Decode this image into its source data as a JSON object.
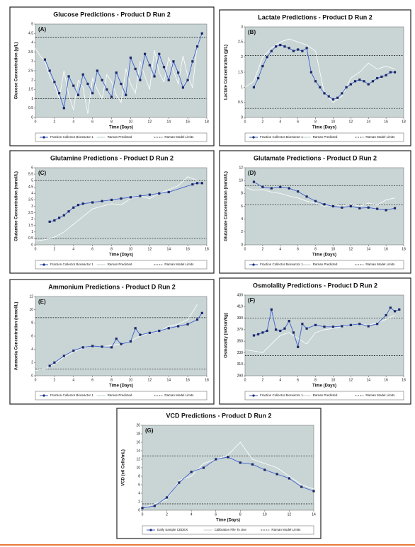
{
  "chart_data": [
    {
      "type": "line",
      "title": "Glucose Predictions - Product D Run 2",
      "panel_label": "(A)",
      "xlabel": "Time (Days)",
      "ylabel": "Glucose Concentration (g/L)",
      "xlim": [
        0,
        18
      ],
      "xticks": [
        0,
        2,
        4,
        6,
        8,
        10,
        12,
        14,
        16,
        18
      ],
      "ylim": [
        0,
        5
      ],
      "yticks": [
        0,
        0.5,
        1,
        1.5,
        2,
        2.5,
        3,
        3.5,
        4,
        4.5,
        5
      ],
      "series": [
        {
          "name": "Fraction Collector Bioreactor 1",
          "color": "#3a5fcd",
          "x": [
            1,
            1.5,
            2,
            2.5,
            3,
            3.5,
            4,
            4.5,
            5,
            5.5,
            6,
            6.5,
            7,
            7.5,
            8,
            8.5,
            9,
            9.5,
            10,
            10.5,
            11,
            11.5,
            12,
            12.5,
            13,
            13.5,
            14,
            14.5,
            15,
            15.5,
            16,
            16.5,
            17,
            17.5
          ],
          "values": [
            3.1,
            2.5,
            1.9,
            1.3,
            0.5,
            2.2,
            1.7,
            1.2,
            2.3,
            1.8,
            1.3,
            2.5,
            2.0,
            1.5,
            1.1,
            2.4,
            1.8,
            1.2,
            3.2,
            2.6,
            2.0,
            3.4,
            2.8,
            2.2,
            3.4,
            2.7,
            2.0,
            3.0,
            2.4,
            1.6,
            2.0,
            3.0,
            3.8,
            4.5
          ]
        },
        {
          "name": "Raman Predicted",
          "color": "#ffffff",
          "x": [
            0,
            0.5,
            1,
            1.5,
            2,
            2.5,
            3,
            3.5,
            4,
            4.5,
            5,
            5.5,
            6,
            6.5,
            7,
            7.5,
            8,
            8.5,
            9,
            9.5,
            10,
            10.5,
            11,
            11.5,
            12,
            12.5,
            13,
            13.5,
            14,
            14.5,
            15,
            15.5,
            16,
            16.5,
            17,
            17.5
          ],
          "values": [
            3.7,
            3.3,
            3.0,
            2.2,
            1.8,
            1.0,
            2.5,
            1.2,
            0.4,
            2.0,
            1.6,
            0.2,
            2.1,
            1.5,
            1.0,
            2.3,
            1.9,
            1.2,
            0.8,
            2.6,
            1.8,
            1.3,
            3.0,
            2.2,
            1.5,
            3.6,
            2.4,
            1.9,
            3.2,
            2.5,
            1.8,
            3.3,
            2.2,
            1.6,
            3.9,
            4.4
          ]
        }
      ],
      "limits": {
        "name": "Raman Model Limits",
        "values": [
          1.0,
          4.3
        ]
      }
    },
    {
      "type": "line",
      "title": "Lactate Predictions - Product D Run 2",
      "panel_label": "(B)",
      "xlabel": "Time (Days)",
      "ylabel": "Lactate Concentration (g/L)",
      "xlim": [
        0,
        18
      ],
      "xticks": [
        0,
        2,
        4,
        6,
        8,
        10,
        12,
        14,
        16,
        18
      ],
      "ylim": [
        0,
        3
      ],
      "yticks": [
        0,
        0.5,
        1,
        1.5,
        2,
        2.5,
        3
      ],
      "series": [
        {
          "name": "Fraction Collector Bioreactor 1",
          "color": "#3a5fcd",
          "x": [
            1,
            1.5,
            2,
            2.5,
            3,
            3.5,
            4,
            4.5,
            5,
            5.5,
            6,
            6.5,
            7,
            7.5,
            8,
            8.5,
            9,
            9.5,
            10,
            10.5,
            11,
            11.5,
            12,
            12.5,
            13,
            13.5,
            14,
            14.5,
            15,
            15.5,
            16,
            16.5,
            17
          ],
          "values": [
            1.0,
            1.3,
            1.7,
            2.0,
            2.2,
            2.35,
            2.4,
            2.35,
            2.3,
            2.2,
            2.25,
            2.2,
            2.3,
            1.5,
            1.2,
            1.0,
            0.8,
            0.7,
            0.6,
            0.65,
            0.8,
            1.0,
            1.1,
            1.2,
            1.25,
            1.2,
            1.1,
            1.2,
            1.3,
            1.35,
            1.4,
            1.5,
            1.5
          ]
        },
        {
          "name": "Raman Predicted",
          "color": "#ffffff",
          "x": [
            0,
            1,
            2,
            3,
            4,
            5,
            6,
            7,
            8,
            9,
            10,
            11,
            12,
            13,
            14,
            15,
            16,
            17
          ],
          "values": [
            1.0,
            1.2,
            2.0,
            2.3,
            2.5,
            2.6,
            2.5,
            2.4,
            2.2,
            0.8,
            0.5,
            0.7,
            1.3,
            1.5,
            1.8,
            1.6,
            1.7,
            1.6
          ]
        }
      ],
      "limits": {
        "name": "Raman Model Limits",
        "values": [
          0.3,
          2.05
        ]
      }
    },
    {
      "type": "line",
      "title": "Glutamine Predictions - Product D Run 2",
      "panel_label": "(C)",
      "xlabel": "Time (Days)",
      "ylabel": "Glutamine Concentration (mmol/L)",
      "xlim": [
        0,
        18
      ],
      "xticks": [
        0,
        2,
        4,
        6,
        8,
        10,
        12,
        14,
        16,
        18
      ],
      "ylim": [
        0,
        6
      ],
      "yticks": [
        0,
        0.5,
        1,
        1.5,
        2,
        2.5,
        3,
        3.5,
        4,
        4.5,
        5,
        5.5,
        6
      ],
      "series": [
        {
          "name": "Fraction Collector Bioreactor 1",
          "color": "#3a5fcd",
          "x": [
            1.5,
            2,
            2.5,
            3,
            3.5,
            4,
            4.5,
            5,
            6,
            7,
            8,
            9,
            10,
            11,
            12,
            13,
            14,
            16.5,
            17,
            17.5
          ],
          "values": [
            1.8,
            1.9,
            2.1,
            2.3,
            2.6,
            2.9,
            3.1,
            3.2,
            3.3,
            3.4,
            3.5,
            3.6,
            3.7,
            3.8,
            3.9,
            4.0,
            4.1,
            4.7,
            4.8,
            4.8
          ]
        },
        {
          "name": "Raman Predicted",
          "color": "#ffffff",
          "x": [
            0,
            1,
            2,
            3,
            4,
            5,
            6,
            7,
            8,
            9,
            10,
            11,
            12,
            13,
            14,
            15,
            16,
            17
          ],
          "values": [
            0.3,
            0.4,
            0.6,
            1.0,
            1.6,
            2.2,
            2.8,
            3.0,
            3.2,
            3.1,
            3.6,
            3.8,
            3.6,
            4.0,
            4.3,
            4.6,
            5.3,
            5.0
          ]
        }
      ],
      "limits": {
        "name": "Raman Model Limits",
        "values": [
          0.5,
          5.0
        ]
      }
    },
    {
      "type": "line",
      "title": "Glutamate Predictions - Product D Run 2",
      "panel_label": "(D)",
      "xlabel": "Time (Days)",
      "ylabel": "Glutamate Concentration (mmol/L)",
      "xlim": [
        0,
        18
      ],
      "xticks": [
        0,
        2,
        4,
        6,
        8,
        10,
        12,
        14,
        16,
        18
      ],
      "ylim": [
        0,
        12
      ],
      "yticks": [
        0,
        2,
        4,
        6,
        8,
        10,
        12
      ],
      "series": [
        {
          "name": "Fraction Collector Bioreactor 1",
          "color": "#3a5fcd",
          "x": [
            1,
            2,
            3,
            4,
            5,
            6,
            7,
            8,
            9,
            10,
            11,
            12,
            13,
            14,
            15,
            16,
            17
          ],
          "values": [
            9.8,
            9.0,
            8.8,
            9.0,
            8.8,
            8.3,
            7.5,
            6.8,
            6.3,
            6.0,
            5.8,
            6.0,
            5.7,
            5.8,
            5.6,
            5.4,
            5.7
          ]
        },
        {
          "name": "Raman Predicted",
          "color": "#ffffff",
          "x": [
            0,
            1,
            2,
            3,
            4,
            5,
            6,
            7,
            8,
            9,
            10,
            11,
            12,
            13,
            14,
            15,
            16,
            17
          ],
          "values": [
            8.9,
            8.5,
            8.6,
            8.2,
            8.0,
            7.6,
            7.3,
            6.8,
            6.5,
            6.0,
            6.3,
            6.0,
            6.4,
            6.0,
            6.5,
            6.2,
            7.0,
            7.3
          ]
        }
      ],
      "limits": {
        "name": "Raman Model Limits",
        "values": [
          6.2,
          9.2
        ]
      }
    },
    {
      "type": "line",
      "title": "Ammonium Predictions - Product D Run 2",
      "panel_label": "(E)",
      "xlabel": "Time (Days)",
      "ylabel": "Ammonia Concentration (mmol/L)",
      "xlim": [
        0,
        18
      ],
      "xticks": [
        0,
        2,
        4,
        6,
        8,
        10,
        12,
        14,
        16,
        18
      ],
      "ylim": [
        0,
        12
      ],
      "yticks": [
        0,
        2,
        4,
        6,
        8,
        10,
        12
      ],
      "series": [
        {
          "name": "Fraction Collector Bioreactor 1",
          "color": "#3a5fcd",
          "x": [
            1.5,
            2,
            3,
            4,
            5,
            6,
            7,
            8,
            8.5,
            9,
            10,
            10.5,
            11,
            12,
            13,
            14,
            15,
            16,
            17,
            17.5
          ],
          "values": [
            1.5,
            2.0,
            3.0,
            3.8,
            4.3,
            4.5,
            4.4,
            4.3,
            5.6,
            4.8,
            5.2,
            7.2,
            6.2,
            6.5,
            6.8,
            7.2,
            7.5,
            7.8,
            8.5,
            9.5
          ]
        },
        {
          "name": "Raman Predicted",
          "color": "#ffffff",
          "x": [
            0,
            1,
            2,
            3,
            4,
            5,
            6,
            7,
            8,
            9,
            10,
            11,
            12,
            13,
            14,
            15,
            16,
            17
          ],
          "values": [
            0.8,
            1.0,
            1.8,
            2.8,
            3.6,
            4.2,
            4.5,
            4.4,
            4.6,
            4.8,
            5.3,
            6.0,
            6.5,
            6.7,
            7.5,
            7.8,
            8.5,
            10.8
          ]
        }
      ],
      "limits": {
        "name": "Raman Model Limits",
        "values": [
          1.0,
          8.8
        ]
      }
    },
    {
      "type": "line",
      "title": "Osmolality Predictions - Product D Run 2",
      "panel_label": "(F)",
      "xlabel": "Time (Days)",
      "ylabel": "Osmolality (mOsm/kg)",
      "xlim": [
        0,
        18
      ],
      "xticks": [
        0,
        2,
        4,
        6,
        8,
        10,
        12,
        14,
        16,
        18
      ],
      "ylim": [
        290,
        430
      ],
      "yticks": [
        290,
        310,
        330,
        350,
        370,
        390,
        410,
        430
      ],
      "series": [
        {
          "name": "Fraction Collector Bioreactor 1",
          "color": "#3a5fcd",
          "x": [
            1,
            1.5,
            2,
            2.5,
            3,
            3.5,
            4,
            4.5,
            5,
            5.5,
            6,
            6.5,
            7,
            8,
            9,
            10,
            11,
            12,
            13,
            14,
            15,
            16,
            16.5,
            17,
            17.5
          ],
          "values": [
            360,
            362,
            365,
            368,
            405,
            370,
            368,
            372,
            385,
            365,
            340,
            380,
            372,
            378,
            375,
            375,
            376,
            378,
            380,
            376,
            380,
            395,
            408,
            402,
            405
          ]
        },
        {
          "name": "Raman Predicted",
          "color": "#ffffff",
          "x": [
            0,
            1,
            2,
            3,
            4,
            5,
            6,
            7,
            8,
            9,
            10,
            11,
            12,
            13,
            14,
            15,
            16,
            17
          ],
          "values": [
            335,
            333,
            330,
            345,
            360,
            365,
            355,
            345,
            365,
            370,
            372,
            375,
            378,
            380,
            378,
            382,
            388,
            395
          ]
        }
      ],
      "limits": {
        "name": "Raman Model Limits",
        "values": [
          325,
          390
        ]
      }
    },
    {
      "type": "line",
      "title": "VCD Predictions - Product D Run 2",
      "panel_label": "(G)",
      "xlabel": "Time (Days)",
      "ylabel": "VCD (e6 Cells/mL)",
      "xlim": [
        0,
        14
      ],
      "xticks": [
        0,
        2,
        4,
        6,
        8,
        10,
        12,
        14
      ],
      "ylim": [
        0,
        20
      ],
      "yticks": [
        0,
        2,
        4,
        6,
        8,
        10,
        12,
        14,
        16,
        18,
        20
      ],
      "series": [
        {
          "name": "Daily Sample CEDEX",
          "color": "#3a5fcd",
          "x": [
            0,
            1,
            2,
            3,
            4,
            5,
            6,
            7,
            8,
            9,
            10,
            11,
            12,
            13,
            14
          ],
          "values": [
            0.5,
            1.0,
            3.0,
            6.5,
            9.0,
            10.0,
            12.0,
            12.5,
            11.2,
            10.8,
            9.5,
            8.5,
            7.5,
            5.5,
            4.5
          ]
        },
        {
          "name": "Calibration File To Use",
          "color": "#ffffff",
          "x": [
            0,
            1,
            2,
            3,
            4,
            5,
            6,
            7,
            8,
            9,
            10,
            11,
            12,
            13,
            14
          ],
          "values": [
            0.5,
            1.5,
            2.5,
            7.0,
            8.0,
            11.0,
            12.0,
            13.0,
            16.0,
            12.0,
            11.0,
            10.0,
            8.0,
            6.0,
            5.0
          ]
        }
      ],
      "limits": {
        "name": "Raman Model Limits",
        "values": [
          1.5,
          12.8
        ]
      }
    }
  ]
}
